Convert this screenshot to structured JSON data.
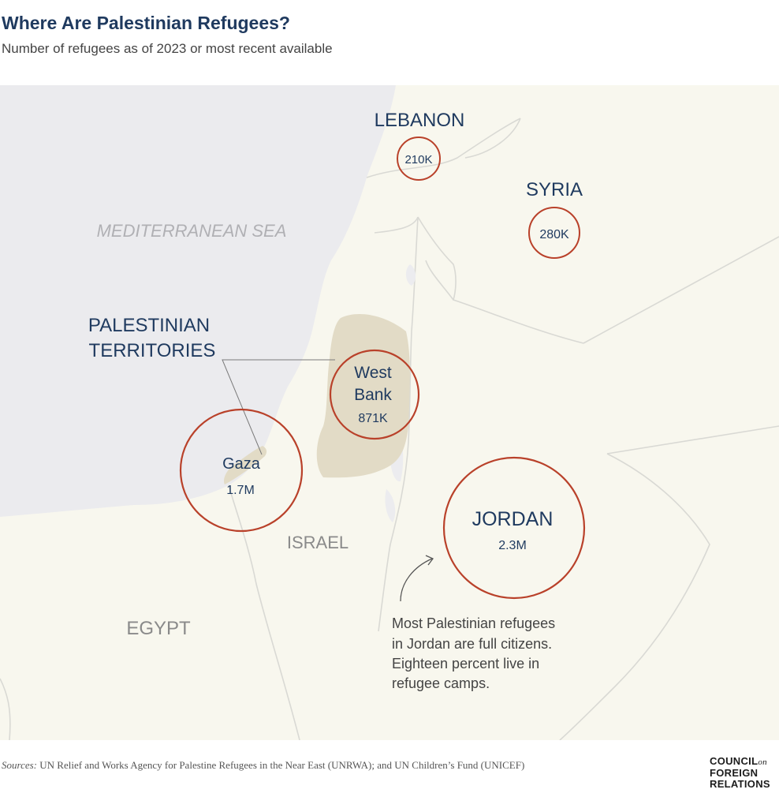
{
  "title": "Where Are Palestinian Refugees?",
  "subtitle": "Number of refugees as of 2023 or most recent available",
  "map": {
    "labels": {
      "sea": "MEDITERRANEAN SEA",
      "israel": "ISRAEL",
      "egypt": "EGYPT",
      "territories_line1": "PALESTINIAN",
      "territories_line2": "TERRITORIES"
    },
    "locations": [
      {
        "name": "LEBANON",
        "value": "210K",
        "refugees": 210000
      },
      {
        "name": "SYRIA",
        "value": "280K",
        "refugees": 280000
      },
      {
        "name": "West Bank",
        "value": "871K",
        "refugees": 871000
      },
      {
        "name": "Gaza",
        "value": "1.7M",
        "refugees": 1700000
      },
      {
        "name": "JORDAN",
        "value": "2.3M",
        "refugees": 2300000
      }
    ],
    "west_bank_line1": "West",
    "west_bank_line2": "Bank",
    "annotation": [
      "Most Palestinian refugees",
      "in Jordan are full citizens.",
      "Eighteen percent live in",
      "refugee camps."
    ],
    "colors": {
      "sea": "#ebebee",
      "land": "#f8f7ee",
      "territories": "#e2dbc6",
      "circle": "#b9412a",
      "label": "#1f3a5f",
      "muted_label": "#8a8a8a"
    }
  },
  "sources": {
    "label": "Sources:",
    "text": "UN Relief and Works Agency for Palestine Refugees in the Near East (UNRWA); and UN Children’s Fund (UNICEF)"
  },
  "logo": {
    "line1": "COUNCIL",
    "line1_suffix": "on",
    "line2": "FOREIGN",
    "line3": "RELATIONS"
  }
}
